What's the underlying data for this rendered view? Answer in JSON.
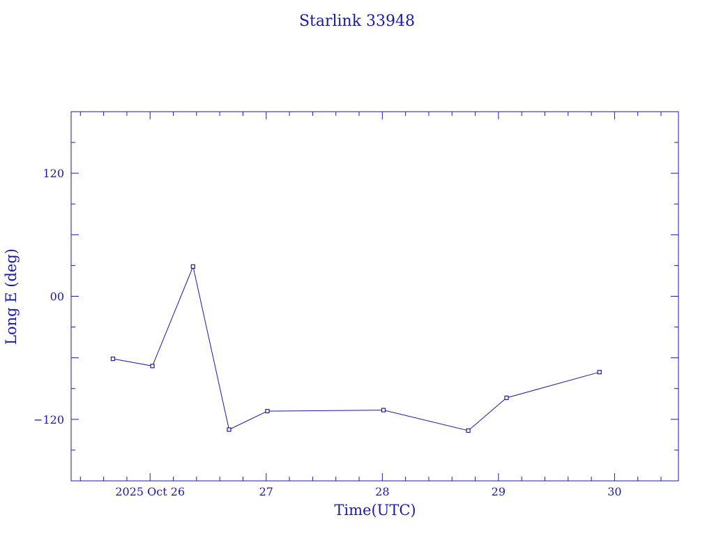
{
  "chart_data": {
    "type": "line",
    "title": "Starlink 33948",
    "xlabel": "Time(UTC)",
    "ylabel": "Long E (deg)",
    "x_ticks": [
      {
        "label": "2025 Oct 26",
        "x": 26.0
      },
      {
        "label": "27",
        "x": 27.0
      },
      {
        "label": "28",
        "x": 28.0
      },
      {
        "label": "29",
        "x": 29.0
      },
      {
        "label": "30",
        "x": 30.0
      }
    ],
    "y_ticks": [
      {
        "label": "120",
        "y": 120
      },
      {
        "label": "00",
        "y": 0
      },
      {
        "label": "−120",
        "y": -120
      }
    ],
    "xlim": [
      25.32,
      30.55
    ],
    "ylim": [
      -180,
      180
    ],
    "x_unit": "day of October 2025 (UTC)",
    "grid": false,
    "color": "#1a1aa6",
    "series": [
      {
        "x": [
          25.68,
          26.02,
          26.37,
          26.68,
          27.01,
          28.01,
          28.74,
          29.07,
          29.87
        ],
        "values": [
          -61,
          -68,
          29,
          -130,
          -112,
          -111,
          -131,
          -99,
          -74
        ]
      }
    ]
  }
}
